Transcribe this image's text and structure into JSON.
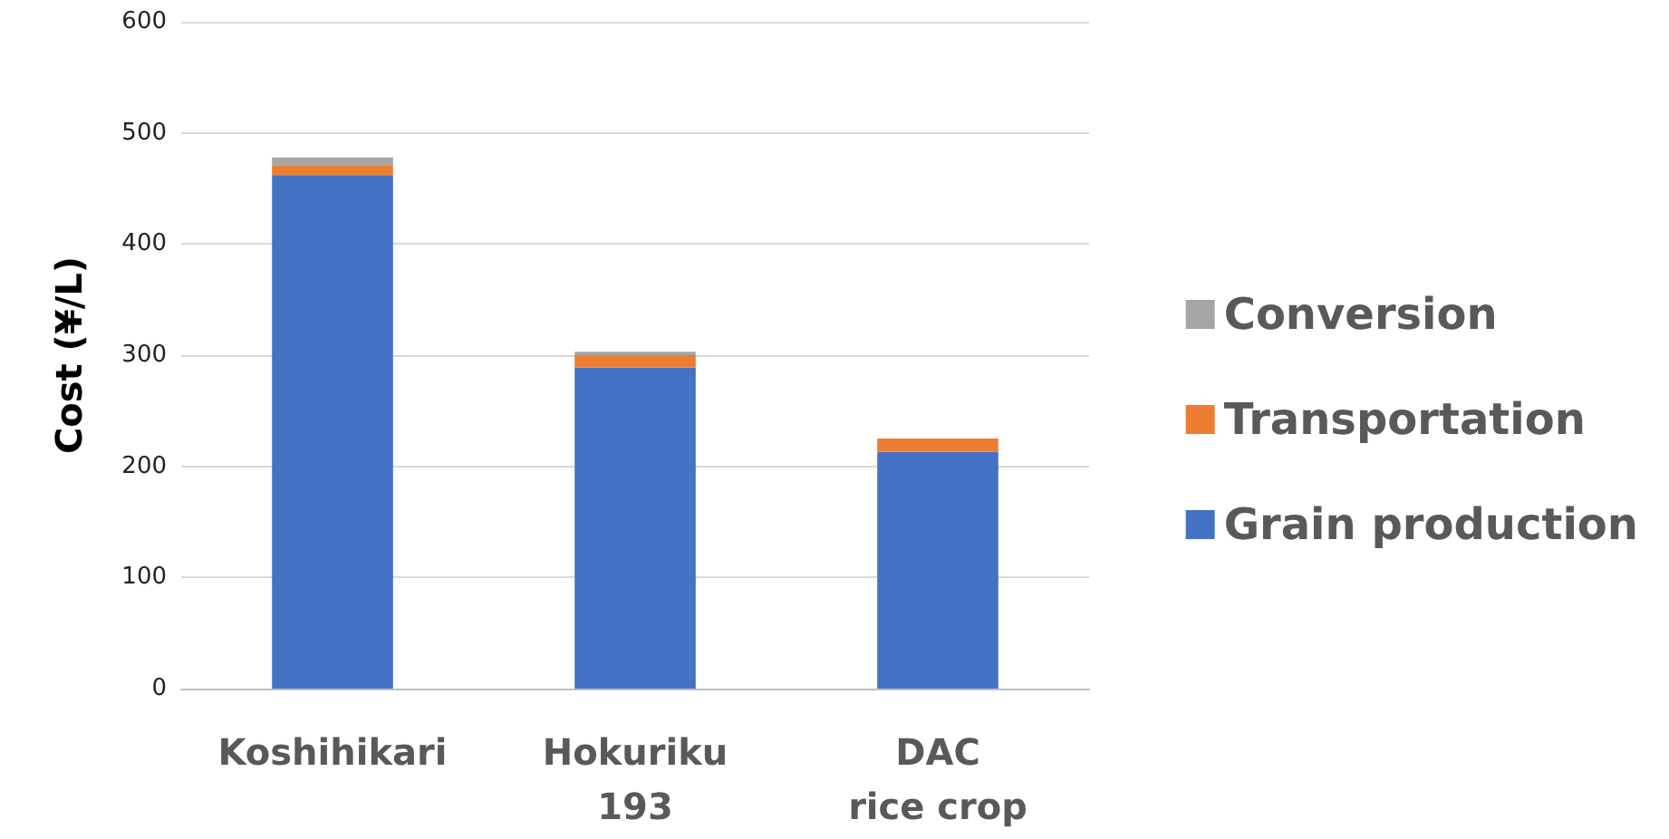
{
  "chart_data": {
    "type": "bar",
    "stacked": true,
    "ylabel": "Cost (¥/L)",
    "categories": [
      "Koshihikari",
      "Hokuriku\n193",
      "DAC\nrice crop"
    ],
    "series": [
      {
        "name": "Grain production",
        "color": "#4472c4",
        "values": [
          462,
          289,
          213
        ]
      },
      {
        "name": "Transportation",
        "color": "#ed7d31",
        "values": [
          9,
          11,
          12
        ]
      },
      {
        "name": "Conversion",
        "color": "#a5a5a5",
        "values": [
          7,
          3,
          null
        ]
      }
    ],
    "ylim": [
      0,
      600
    ],
    "yticks": [
      0,
      100,
      200,
      300,
      400,
      500,
      600
    ],
    "grid": "y",
    "legend": "right"
  }
}
